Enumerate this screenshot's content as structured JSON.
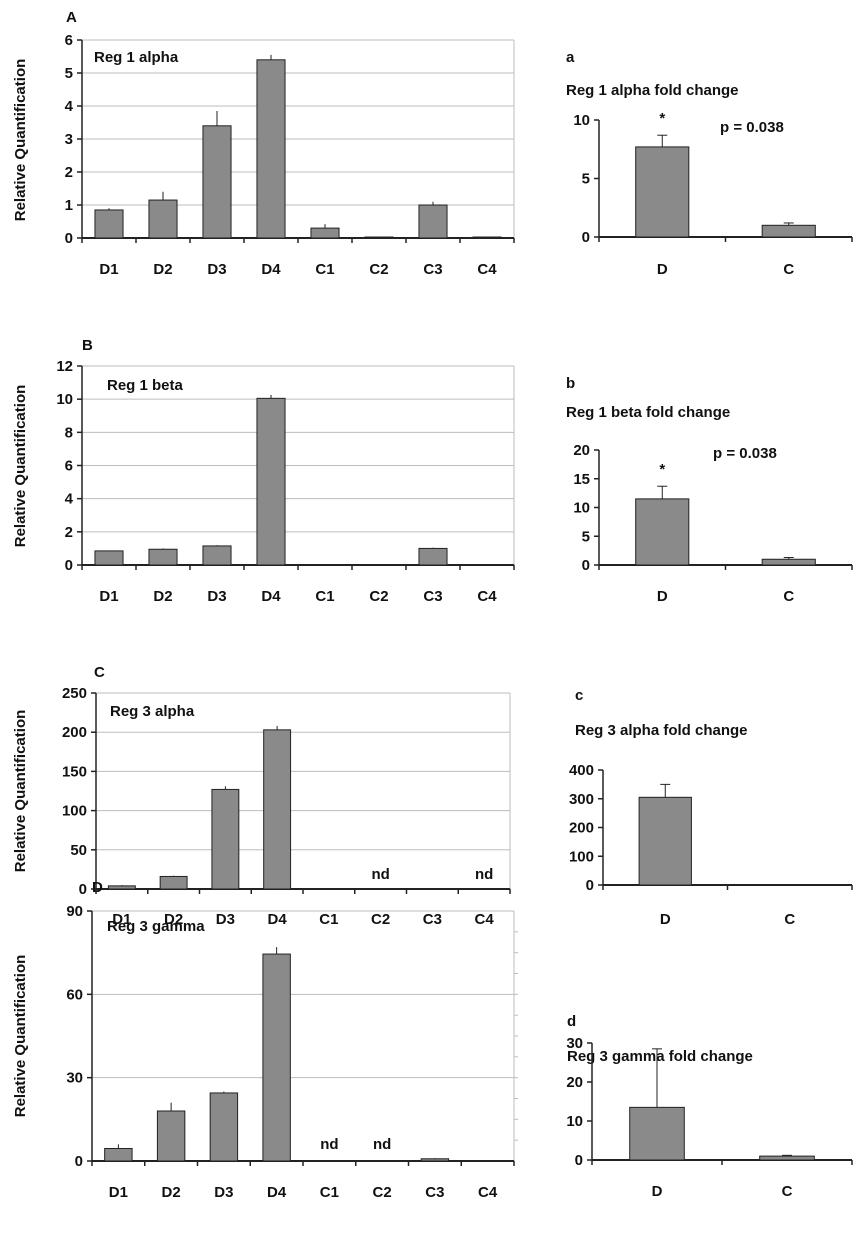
{
  "colors": {
    "bar_fill": "#8a8a8a",
    "bar_stroke": "#222222",
    "grid": "#bdbdbd",
    "axis": "#222222"
  },
  "chart_data": [
    {
      "type": "bar",
      "panel_letter": "A",
      "title": "Reg 1 alpha",
      "ylabel": "Relative Quantification",
      "xlabel": "",
      "categories": [
        "D1",
        "D2",
        "D3",
        "D4",
        "C1",
        "C2",
        "C3",
        "C4"
      ],
      "values": [
        0.85,
        1.15,
        3.4,
        5.4,
        0.3,
        0.03,
        1.0,
        0.03
      ],
      "errors": [
        0.05,
        0.25,
        0.45,
        0.15,
        0.12,
        0.0,
        0.1,
        0.0
      ],
      "annotations": [
        "",
        "",
        "",
        "",
        "",
        "",
        "",
        ""
      ],
      "ylim": [
        0,
        6
      ],
      "yticks": [
        0,
        1,
        2,
        3,
        4,
        5,
        6
      ],
      "grid": true
    },
    {
      "type": "bar",
      "panel_letter": "a",
      "title": "Reg 1 alpha fold change",
      "xlabel": "",
      "ylabel": "",
      "categories": [
        "D",
        "C"
      ],
      "values": [
        7.7,
        1.0
      ],
      "errors": [
        1.0,
        0.2
      ],
      "significance": [
        "*",
        ""
      ],
      "pvalue": "p = 0.038",
      "ylim": [
        0,
        10
      ],
      "yticks": [
        0,
        5,
        10
      ],
      "grid": false
    },
    {
      "type": "bar",
      "panel_letter": "B",
      "title": "Reg 1 beta",
      "ylabel": "Relative Quantification",
      "xlabel": "",
      "categories": [
        "D1",
        "D2",
        "D3",
        "D4",
        "C1",
        "C2",
        "C3",
        "C4"
      ],
      "values": [
        0.85,
        0.95,
        1.15,
        10.05,
        0.0,
        0.0,
        1.0,
        0.0
      ],
      "errors": [
        0.0,
        0.05,
        0.05,
        0.2,
        0.0,
        0.0,
        0.05,
        0.0
      ],
      "annotations": [
        "",
        "",
        "",
        "",
        "",
        "",
        "",
        ""
      ],
      "ylim": [
        0,
        12
      ],
      "yticks": [
        0,
        2,
        4,
        6,
        8,
        10,
        12
      ],
      "grid": true
    },
    {
      "type": "bar",
      "panel_letter": "b",
      "title": "Reg 1 beta fold change",
      "xlabel": "",
      "ylabel": "",
      "categories": [
        "D",
        "C"
      ],
      "values": [
        11.5,
        1.0
      ],
      "errors": [
        2.2,
        0.3
      ],
      "significance": [
        "*",
        ""
      ],
      "pvalue": "p = 0.038",
      "ylim": [
        0,
        20
      ],
      "yticks": [
        0,
        5,
        10,
        15,
        20
      ],
      "grid": false
    },
    {
      "type": "bar",
      "panel_letter": "C",
      "title": "Reg 3 alpha",
      "ylabel": "Relative Quantification",
      "xlabel": "",
      "categories": [
        "D1",
        "D2",
        "D3",
        "D4",
        "C1",
        "C2",
        "C3",
        "C4"
      ],
      "values": [
        4,
        16,
        127,
        203,
        0,
        0,
        0,
        0
      ],
      "errors": [
        1,
        1,
        4,
        5,
        0,
        0,
        0,
        0
      ],
      "annotations": [
        "",
        "",
        "",
        "",
        "",
        "nd",
        "",
        "nd"
      ],
      "ylim": [
        0,
        250
      ],
      "yticks": [
        0,
        50,
        100,
        150,
        200,
        250
      ],
      "grid": true
    },
    {
      "type": "bar",
      "panel_letter": "c",
      "title": "Reg 3 alpha fold change",
      "xlabel": "",
      "ylabel": "",
      "categories": [
        "D",
        "C"
      ],
      "values": [
        305,
        0
      ],
      "errors": [
        45,
        0
      ],
      "significance": [
        "",
        ""
      ],
      "pvalue": "",
      "ylim": [
        0,
        400
      ],
      "yticks": [
        0,
        100,
        200,
        300,
        400
      ],
      "grid": false
    },
    {
      "type": "bar",
      "panel_letter": "D",
      "title": "Reg 3 gamma",
      "ylabel": "Relative Quantification",
      "xlabel": "",
      "categories": [
        "D1",
        "D2",
        "D3",
        "D4",
        "C1",
        "C2",
        "C3",
        "C4"
      ],
      "values": [
        4.5,
        18,
        24.5,
        74.5,
        0,
        0,
        0.8,
        0
      ],
      "errors": [
        1.5,
        3,
        0.5,
        2.5,
        0,
        0,
        0.2,
        0
      ],
      "annotations": [
        "",
        "",
        "",
        "",
        "nd",
        "nd",
        "",
        ""
      ],
      "ylim": [
        0,
        90
      ],
      "yticks": [
        0,
        30,
        60,
        90
      ],
      "grid": true
    },
    {
      "type": "bar",
      "panel_letter": "d",
      "title": "Reg 3 gamma fold change",
      "xlabel": "",
      "ylabel": "",
      "categories": [
        "D",
        "C"
      ],
      "values": [
        13.5,
        1.0
      ],
      "errors": [
        15,
        0.2
      ],
      "significance": [
        "",
        ""
      ],
      "pvalue": "",
      "ylim": [
        0,
        30
      ],
      "yticks": [
        0,
        10,
        20,
        30
      ],
      "grid": false
    }
  ]
}
